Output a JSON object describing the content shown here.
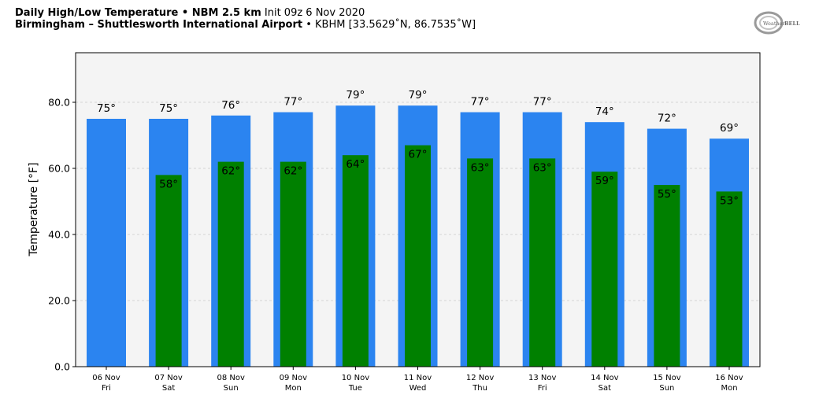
{
  "header": {
    "line1_bold": "Daily High/Low Temperature • NBM 2.5 km",
    "line1_light": "Init 09z 6 Nov 2020",
    "line2_bold": "Birmingham – Shuttlesworth International Airport",
    "line2_light": "• KBHM [33.5629˚N, 86.7535˚W]"
  },
  "logo": {
    "text_a": "Weather",
    "text_b": "BELL",
    "icon": "weatherbell-logo"
  },
  "chart_data": {
    "type": "bar",
    "ylabel": "Temperature [°F]",
    "ylim": [
      0,
      95
    ],
    "yticks": [
      0,
      20,
      40,
      60,
      80
    ],
    "ytick_labels": [
      "0.0",
      "20.0",
      "40.0",
      "60.0",
      "80.0"
    ],
    "grid": true,
    "categories": [
      {
        "date": "06 Nov",
        "day": "Fri"
      },
      {
        "date": "07 Nov",
        "day": "Sat"
      },
      {
        "date": "08 Nov",
        "day": "Sun"
      },
      {
        "date": "09 Nov",
        "day": "Mon"
      },
      {
        "date": "10 Nov",
        "day": "Tue"
      },
      {
        "date": "11 Nov",
        "day": "Wed"
      },
      {
        "date": "12 Nov",
        "day": "Thu"
      },
      {
        "date": "13 Nov",
        "day": "Fri"
      },
      {
        "date": "14 Nov",
        "day": "Sat"
      },
      {
        "date": "15 Nov",
        "day": "Sun"
      },
      {
        "date": "16 Nov",
        "day": "Mon"
      }
    ],
    "series": [
      {
        "color": "#2b84f0",
        "values": [
          75,
          75,
          76,
          77,
          79,
          79,
          77,
          77,
          74,
          72,
          69
        ],
        "labels": [
          "75°",
          "75°",
          "76°",
          "77°",
          "79°",
          "79°",
          "77°",
          "77°",
          "74°",
          "72°",
          "69°"
        ]
      },
      {
        "color": "#008000",
        "values": [
          null,
          58,
          62,
          62,
          64,
          67,
          63,
          63,
          59,
          55,
          53
        ],
        "labels": [
          "",
          "58°",
          "62°",
          "62°",
          "64°",
          "67°",
          "63°",
          "63°",
          "59°",
          "55°",
          "53°"
        ]
      }
    ]
  }
}
